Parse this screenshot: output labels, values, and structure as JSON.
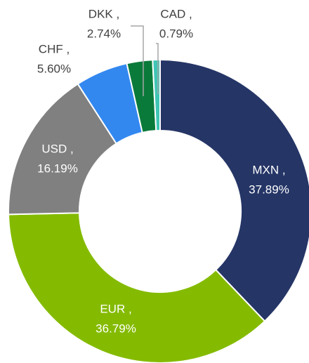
{
  "chart_data": {
    "type": "donut",
    "categories": [
      "MXN ,",
      "EUR ,",
      "USD ,",
      "CHF ,",
      "DKK ,",
      "CAD ,"
    ],
    "values": [
      37.89,
      36.79,
      16.19,
      5.6,
      2.74,
      0.79
    ],
    "value_labels": [
      "37.89%",
      "36.79%",
      "16.19%",
      "5.60%",
      "2.74%",
      "0.79%"
    ],
    "colors": [
      "#253566",
      "#84bb00",
      "#808080",
      "#3388f0",
      "#0a7a3a",
      "#3fc5b5"
    ]
  }
}
